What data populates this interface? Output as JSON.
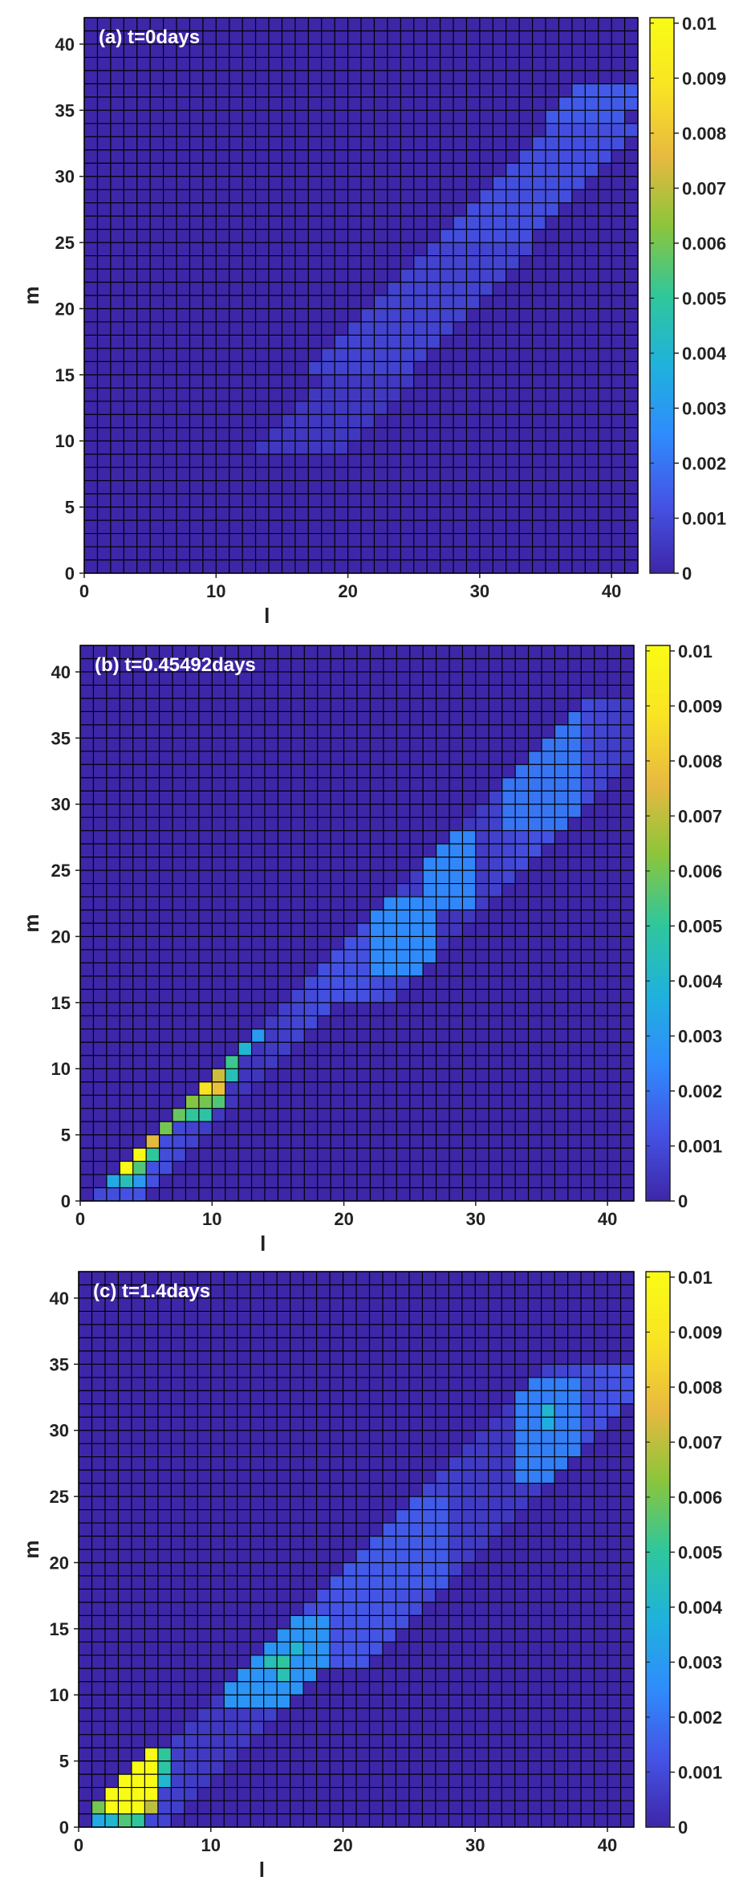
{
  "chart_data": [
    {
      "type": "heatmap",
      "title": "(a) t=0days",
      "xlabel": "l",
      "ylabel": "m",
      "xticks": [
        "0",
        "10",
        "20",
        "30",
        "40"
      ],
      "yticks": [
        "0",
        "5",
        "10",
        "15",
        "20",
        "25",
        "30",
        "35",
        "40"
      ],
      "xlim": [
        0,
        42
      ],
      "ylim": [
        0,
        42
      ],
      "clim": [
        0,
        0.0101
      ],
      "colorbar_ticks": [
        "0",
        "0.001",
        "0.002",
        "0.003",
        "0.004",
        "0.005",
        "0.006",
        "0.007",
        "0.008",
        "0.009",
        "0.01"
      ],
      "colormap": [
        "#3e26a8",
        "#4454e6",
        "#2f8cfc",
        "#1fb2dc",
        "#30c79a",
        "#8cc53b",
        "#e8b940",
        "#f9e424",
        "#f9fb15"
      ],
      "grid_color": "#000000",
      "description_of_data": "l-m bin density: zero everywhere except a diagonal band from about l=13..41, m=9..36, with values ~0.0005-0.0015",
      "bands": [
        {
          "m_from": 9,
          "m_to": 14,
          "l_start_offset": 4,
          "l_end_offset": 10,
          "value": 0.0005
        },
        {
          "m_from": 15,
          "m_to": 24,
          "l_start_offset": 2,
          "l_end_offset": 9,
          "value": 0.0008
        },
        {
          "m_from": 25,
          "m_to": 33,
          "l_start_offset": 2,
          "l_end_offset": 8,
          "value": 0.0011
        },
        {
          "m_from": 34,
          "m_to": 36,
          "l_start_offset": 1,
          "l_end_offset": 6,
          "value": 0.0014
        }
      ]
    },
    {
      "type": "heatmap",
      "title": "(b) t=0.45492days",
      "xlabel": "l",
      "ylabel": "m",
      "xticks": [
        "0",
        "10",
        "20",
        "30",
        "40"
      ],
      "yticks": [
        "0",
        "5",
        "10",
        "15",
        "20",
        "25",
        "30",
        "35",
        "40"
      ],
      "xlim": [
        0,
        42
      ],
      "ylim": [
        0,
        42
      ],
      "clim": [
        0,
        0.0101
      ],
      "colorbar_ticks": [
        "0",
        "0.001",
        "0.002",
        "0.003",
        "0.004",
        "0.005",
        "0.006",
        "0.007",
        "0.008",
        "0.009",
        "0.01"
      ],
      "colormap": [
        "#3e26a8",
        "#4454e6",
        "#2f8cfc",
        "#1fb2dc",
        "#30c79a",
        "#8cc53b",
        "#e8b940",
        "#f9e424",
        "#f9fb15"
      ],
      "grid_color": "#000000",
      "description_of_data": "Strong ridge along l=m+1 at low l (up to ~0.01), diffuse band at higher l with peaks near l~23,m~19 and l~27,m~25 and l~35,m~33",
      "highlights": [
        {
          "l": 3,
          "m": 2,
          "value": 0.0101
        },
        {
          "l": 3,
          "m": 1,
          "value": 0.0045
        },
        {
          "l": 2,
          "m": 1,
          "value": 0.0035
        },
        {
          "l": 4,
          "m": 3,
          "value": 0.0101
        },
        {
          "l": 4,
          "m": 2,
          "value": 0.0055
        },
        {
          "l": 4,
          "m": 1,
          "value": 0.003
        },
        {
          "l": 5,
          "m": 4,
          "value": 0.0075
        },
        {
          "l": 5,
          "m": 3,
          "value": 0.005
        },
        {
          "l": 6,
          "m": 5,
          "value": 0.006
        },
        {
          "l": 7,
          "m": 6,
          "value": 0.0058
        },
        {
          "l": 8,
          "m": 7,
          "value": 0.0062
        },
        {
          "l": 8,
          "m": 6,
          "value": 0.005
        },
        {
          "l": 9,
          "m": 8,
          "value": 0.0088
        },
        {
          "l": 9,
          "m": 7,
          "value": 0.006
        },
        {
          "l": 9,
          "m": 6,
          "value": 0.0048
        },
        {
          "l": 10,
          "m": 9,
          "value": 0.0072
        },
        {
          "l": 10,
          "m": 8,
          "value": 0.0078
        },
        {
          "l": 10,
          "m": 7,
          "value": 0.0055
        },
        {
          "l": 11,
          "m": 10,
          "value": 0.0052
        },
        {
          "l": 11,
          "m": 9,
          "value": 0.0045
        },
        {
          "l": 12,
          "m": 11,
          "value": 0.004
        },
        {
          "l": 13,
          "m": 12,
          "value": 0.003
        }
      ]
    },
    {
      "type": "heatmap",
      "title": "(c) t=1.4days",
      "xlabel": "l",
      "ylabel": "m",
      "xticks": [
        "0",
        "10",
        "20",
        "30",
        "40"
      ],
      "yticks": [
        "0",
        "5",
        "10",
        "15",
        "20",
        "25",
        "30",
        "35",
        "40"
      ],
      "xlim": [
        0,
        42
      ],
      "ylim": [
        0,
        42
      ],
      "clim": [
        0,
        0.0101
      ],
      "colorbar_ticks": [
        "0",
        "0.001",
        "0.002",
        "0.003",
        "0.004",
        "0.005",
        "0.006",
        "0.007",
        "0.008",
        "0.009",
        "0.01"
      ],
      "colormap": [
        "#3e26a8",
        "#4454e6",
        "#2f8cfc",
        "#1fb2dc",
        "#30c79a",
        "#8cc53b",
        "#e8b940",
        "#f9e424",
        "#f9fb15"
      ],
      "grid_color": "#000000",
      "description_of_data": "Saturated (>=0.01) block at l=2..5, m=0..5, ridge at l~15,m~12 (~0.0048), diffuse band up to l~36,m~33 with a local peak near l=35,m=31",
      "highlights": [
        {
          "l": 1,
          "m": 1,
          "value": 0.006
        },
        {
          "l": 1,
          "m": 0,
          "value": 0.0035
        },
        {
          "l": 2,
          "m": 2,
          "value": 0.0101
        },
        {
          "l": 2,
          "m": 1,
          "value": 0.0101
        },
        {
          "l": 2,
          "m": 0,
          "value": 0.004
        },
        {
          "l": 3,
          "m": 3,
          "value": 0.0101
        },
        {
          "l": 3,
          "m": 2,
          "value": 0.0101
        },
        {
          "l": 3,
          "m": 1,
          "value": 0.0101
        },
        {
          "l": 3,
          "m": 0,
          "value": 0.0055
        },
        {
          "l": 4,
          "m": 4,
          "value": 0.0101
        },
        {
          "l": 4,
          "m": 3,
          "value": 0.0101
        },
        {
          "l": 4,
          "m": 2,
          "value": 0.0101
        },
        {
          "l": 4,
          "m": 1,
          "value": 0.0101
        },
        {
          "l": 4,
          "m": 0,
          "value": 0.005
        },
        {
          "l": 5,
          "m": 5,
          "value": 0.0101
        },
        {
          "l": 5,
          "m": 4,
          "value": 0.0101
        },
        {
          "l": 5,
          "m": 3,
          "value": 0.0101
        },
        {
          "l": 5,
          "m": 2,
          "value": 0.0101
        },
        {
          "l": 5,
          "m": 1,
          "value": 0.007
        },
        {
          "l": 6,
          "m": 5,
          "value": 0.005
        },
        {
          "l": 6,
          "m": 4,
          "value": 0.0048
        },
        {
          "l": 6,
          "m": 3,
          "value": 0.004
        },
        {
          "l": 14,
          "m": 12,
          "value": 0.0045
        },
        {
          "l": 15,
          "m": 12,
          "value": 0.005
        },
        {
          "l": 15,
          "m": 11,
          "value": 0.0046
        },
        {
          "l": 16,
          "m": 13,
          "value": 0.004
        },
        {
          "l": 35,
          "m": 31,
          "value": 0.004
        },
        {
          "l": 35,
          "m": 30,
          "value": 0.0036
        }
      ]
    }
  ]
}
